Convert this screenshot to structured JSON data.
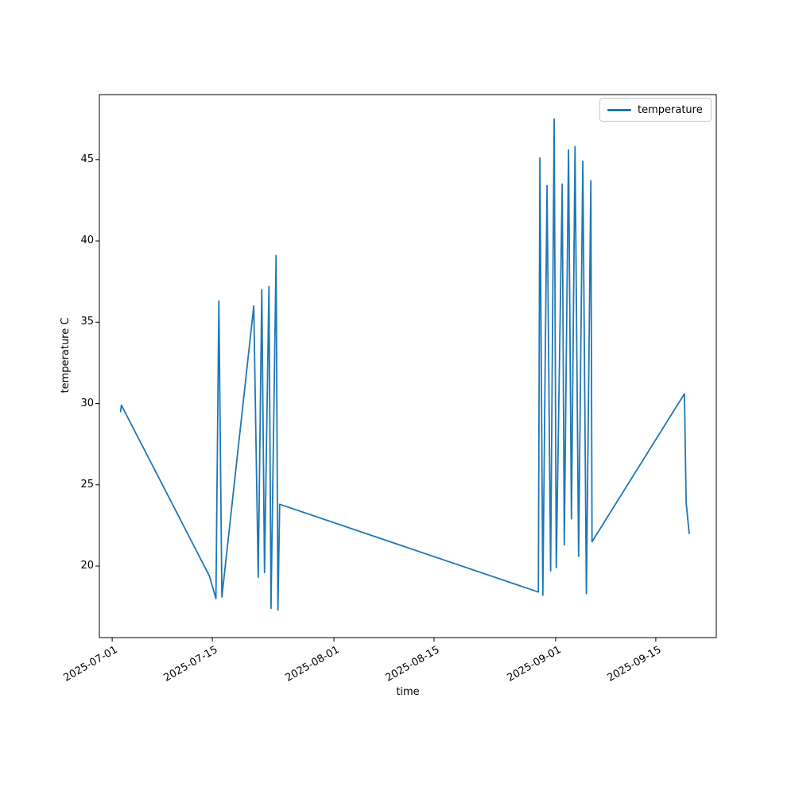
{
  "figure": {
    "background": "#ffffff",
    "accent_color": "#1f77b4",
    "axes_color": "#000000"
  },
  "chart_data": {
    "type": "line",
    "title": "",
    "xlabel": "time",
    "ylabel": "temperature C",
    "legend_label": "temperature",
    "legend_position": "upper right",
    "grid": false,
    "line_color": "#1f77b4",
    "xlim": [
      "2025-06-29T05:00",
      "2025-09-23T11:00"
    ],
    "ylim": [
      15.6,
      49.0
    ],
    "x_ticks": [
      "2025-07-01",
      "2025-07-15",
      "2025-08-01",
      "2025-08-15",
      "2025-09-01",
      "2025-09-15"
    ],
    "y_ticks": [
      20,
      25,
      30,
      35,
      40,
      45
    ],
    "series": [
      {
        "name": "temperature",
        "points": [
          [
            "2025-07-02T04:00",
            29.5
          ],
          [
            "2025-07-02T07:00",
            29.9
          ],
          [
            "2025-07-14T14:00",
            19.4
          ],
          [
            "2025-07-15T12:00",
            18.0
          ],
          [
            "2025-07-15T22:00",
            36.3
          ],
          [
            "2025-07-16T08:00",
            18.1
          ],
          [
            "2025-07-20T19:00",
            36.0
          ],
          [
            "2025-07-21T10:00",
            19.3
          ],
          [
            "2025-07-21T22:00",
            37.0
          ],
          [
            "2025-07-22T07:00",
            19.6
          ],
          [
            "2025-07-22T22:00",
            37.2
          ],
          [
            "2025-07-23T05:00",
            17.4
          ],
          [
            "2025-07-23T22:00",
            39.1
          ],
          [
            "2025-07-24T04:00",
            17.3
          ],
          [
            "2025-07-24T10:00",
            23.8
          ],
          [
            "2025-08-29T14:00",
            18.4
          ],
          [
            "2025-08-29T19:00",
            45.1
          ],
          [
            "2025-08-30T05:00",
            18.2
          ],
          [
            "2025-08-30T19:00",
            43.4
          ],
          [
            "2025-08-31T07:00",
            19.7
          ],
          [
            "2025-08-31T19:00",
            47.5
          ],
          [
            "2025-09-01T02:00",
            19.9
          ],
          [
            "2025-09-01T22:00",
            43.5
          ],
          [
            "2025-09-02T05:00",
            21.3
          ],
          [
            "2025-09-02T19:00",
            45.6
          ],
          [
            "2025-09-03T05:00",
            22.9
          ],
          [
            "2025-09-03T17:00",
            45.8
          ],
          [
            "2025-09-04T05:00",
            20.6
          ],
          [
            "2025-09-04T19:00",
            44.9
          ],
          [
            "2025-09-05T07:00",
            18.3
          ],
          [
            "2025-09-05T22:00",
            43.7
          ],
          [
            "2025-09-06T02:00",
            21.5
          ],
          [
            "2025-09-19T00:00",
            30.6
          ],
          [
            "2025-09-19T06:00",
            23.9
          ],
          [
            "2025-09-19T16:00",
            22.0
          ]
        ]
      }
    ]
  }
}
